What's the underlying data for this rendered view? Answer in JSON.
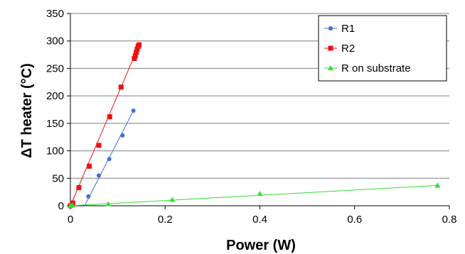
{
  "chart_data": {
    "type": "scatter",
    "xlabel": "Power (W)",
    "ylabel": "ΔT heater  (°C)",
    "xlim": [
      0,
      0.8
    ],
    "ylim": [
      0,
      350
    ],
    "x_ticks": [
      "0",
      "0.2",
      "0.4",
      "0.6",
      "0.8"
    ],
    "y_ticks": [
      "0",
      "50",
      "100",
      "150",
      "200",
      "250",
      "300",
      "350"
    ],
    "grid": "horizontal",
    "legend_position": "top-right",
    "series": [
      {
        "name": "R1",
        "color": "#3c6fd6",
        "marker": "circle",
        "points": [
          [
            0,
            0
          ],
          [
            0.004,
            1
          ],
          [
            0.038,
            17
          ],
          [
            0.06,
            55
          ],
          [
            0.082,
            85
          ],
          [
            0.11,
            128
          ],
          [
            0.133,
            173
          ]
        ],
        "fit_line": [
          [
            0.03,
            0
          ],
          [
            0.133,
            173
          ]
        ]
      },
      {
        "name": "R2",
        "color": "#ee1111",
        "marker": "square",
        "points": [
          [
            0,
            0
          ],
          [
            0.005,
            5
          ],
          [
            0.018,
            33
          ],
          [
            0.04,
            72
          ],
          [
            0.06,
            110
          ],
          [
            0.083,
            162
          ],
          [
            0.107,
            216
          ],
          [
            0.135,
            268
          ],
          [
            0.137,
            273
          ],
          [
            0.139,
            279
          ],
          [
            0.141,
            285
          ],
          [
            0.143,
            290
          ],
          [
            0.145,
            293
          ]
        ],
        "fit_line": [
          [
            0,
            0
          ],
          [
            0.145,
            293
          ]
        ]
      },
      {
        "name": "R on substrate",
        "color": "#33dd33",
        "marker": "triangle",
        "points": [
          [
            0,
            0
          ],
          [
            0.004,
            1
          ],
          [
            0.08,
            3
          ],
          [
            0.215,
            11
          ],
          [
            0.4,
            22
          ],
          [
            0.775,
            37
          ]
        ],
        "fit_line": [
          [
            0,
            0
          ],
          [
            0.775,
            37
          ]
        ]
      }
    ]
  }
}
